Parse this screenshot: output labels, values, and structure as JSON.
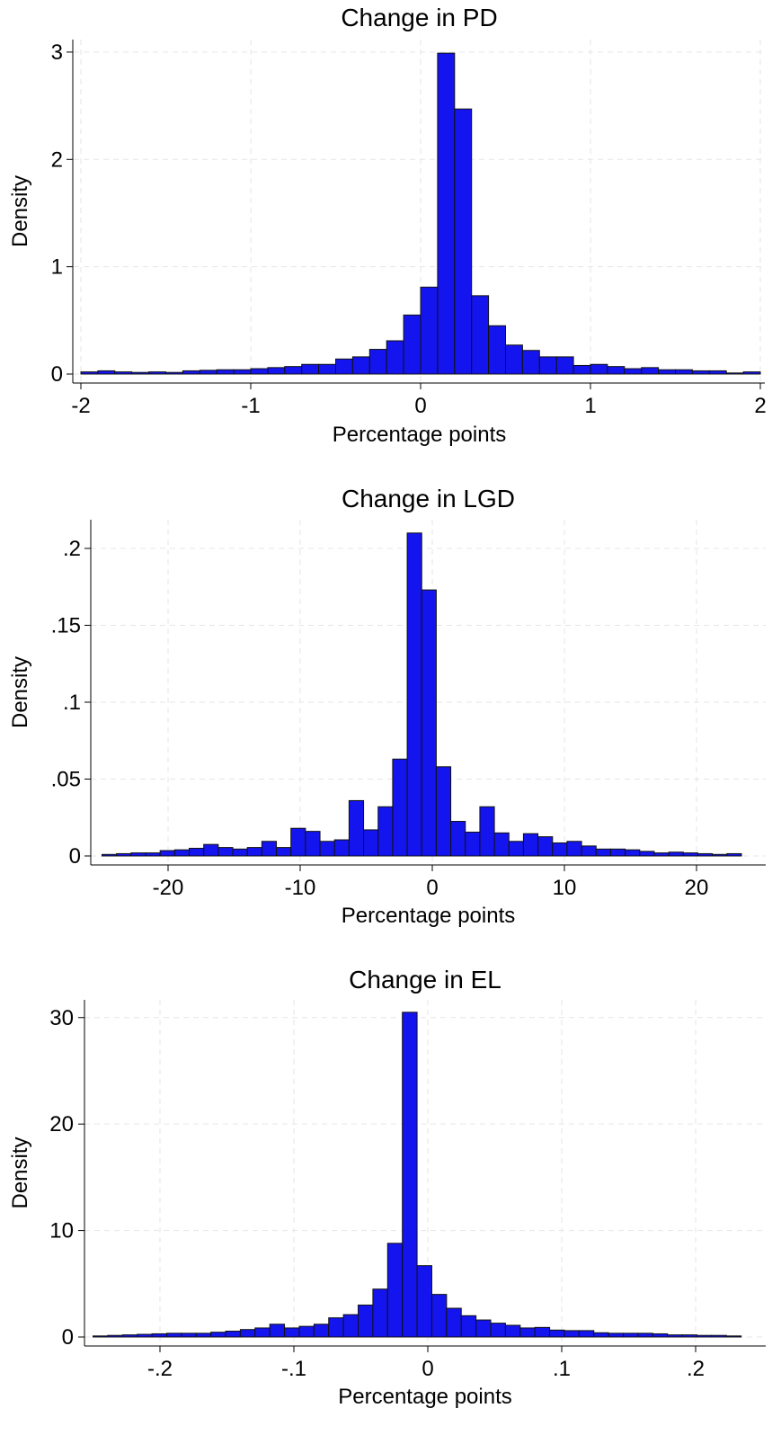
{
  "colors": {
    "bar_fill": "#1414ee",
    "bar_edge": "#111111",
    "grid": "#e6e6e6",
    "background": "#ffffff"
  },
  "chart_data": [
    {
      "type": "bar",
      "title": "Change in PD",
      "xlabel": "Percentage points",
      "ylabel": "Density",
      "grid": true,
      "xlim": [
        -2,
        2
      ],
      "ylim": [
        0,
        3.1
      ],
      "xticks": [
        -2,
        -1,
        0,
        1,
        2
      ],
      "xtick_labels": [
        "-2",
        "-1",
        "0",
        "1",
        "2"
      ],
      "yticks": [
        0,
        1,
        2,
        3
      ],
      "ytick_labels": [
        "0",
        "1",
        "2",
        "3"
      ],
      "bin_start": -2,
      "bin_width": 0.1,
      "values": [
        0.02,
        0.03,
        0.02,
        0.015,
        0.02,
        0.015,
        0.03,
        0.035,
        0.04,
        0.04,
        0.05,
        0.06,
        0.07,
        0.09,
        0.09,
        0.14,
        0.16,
        0.23,
        0.31,
        0.55,
        0.81,
        2.99,
        2.47,
        0.73,
        0.45,
        0.27,
        0.22,
        0.16,
        0.16,
        0.08,
        0.09,
        0.07,
        0.05,
        0.06,
        0.04,
        0.04,
        0.03,
        0.03,
        0.01,
        0.02,
        0.02,
        0.02,
        0.02,
        0.02
      ]
    },
    {
      "type": "bar",
      "title": "Change in LGD",
      "xlabel": "Percentage points",
      "ylabel": "Density",
      "grid": true,
      "xlim": [
        -25,
        25
      ],
      "ylim": [
        0,
        0.2175
      ],
      "xticks": [
        -20,
        -10,
        0,
        10,
        20
      ],
      "xtick_labels": [
        "-20",
        "-10",
        "0",
        "10",
        "20"
      ],
      "yticks": [
        0,
        0.05,
        0.1,
        0.15,
        0.2
      ],
      "ytick_labels": [
        "0",
        ".05",
        ".1",
        ".15",
        ".2"
      ],
      "bin_start": -25,
      "bin_width": 1.1,
      "values": [
        0.001,
        0.0015,
        0.002,
        0.002,
        0.0035,
        0.004,
        0.005,
        0.0075,
        0.0055,
        0.0045,
        0.0055,
        0.0095,
        0.0055,
        0.018,
        0.016,
        0.0095,
        0.0105,
        0.036,
        0.017,
        0.032,
        0.063,
        0.21,
        0.173,
        0.058,
        0.0225,
        0.0155,
        0.032,
        0.015,
        0.0095,
        0.0145,
        0.0125,
        0.0085,
        0.0095,
        0.0065,
        0.0045,
        0.0045,
        0.004,
        0.003,
        0.002,
        0.0025,
        0.002,
        0.0015,
        0.001,
        0.0015
      ]
    },
    {
      "type": "bar",
      "title": "Change in EL",
      "xlabel": "Percentage points",
      "ylabel": "Density",
      "grid": true,
      "xlim": [
        -0.25,
        0.25
      ],
      "ylim": [
        0,
        31.5
      ],
      "xticks": [
        -0.2,
        -0.1,
        0,
        0.1,
        0.2
      ],
      "xtick_labels": [
        "-.2",
        "-.1",
        "0",
        ".1",
        ".2"
      ],
      "yticks": [
        0,
        10,
        20,
        30
      ],
      "ytick_labels": [
        "0",
        "10",
        "20",
        "30"
      ],
      "bin_start": -0.25,
      "bin_width": 0.011,
      "values": [
        0.1,
        0.15,
        0.2,
        0.25,
        0.3,
        0.35,
        0.35,
        0.35,
        0.45,
        0.55,
        0.7,
        0.85,
        1.2,
        0.85,
        1.0,
        1.2,
        1.8,
        2.1,
        3.0,
        4.5,
        8.8,
        30.5,
        6.7,
        4.0,
        2.7,
        2.0,
        1.6,
        1.3,
        1.1,
        0.85,
        0.9,
        0.65,
        0.6,
        0.6,
        0.4,
        0.35,
        0.35,
        0.35,
        0.3,
        0.2,
        0.2,
        0.15,
        0.15,
        0.1
      ]
    }
  ]
}
